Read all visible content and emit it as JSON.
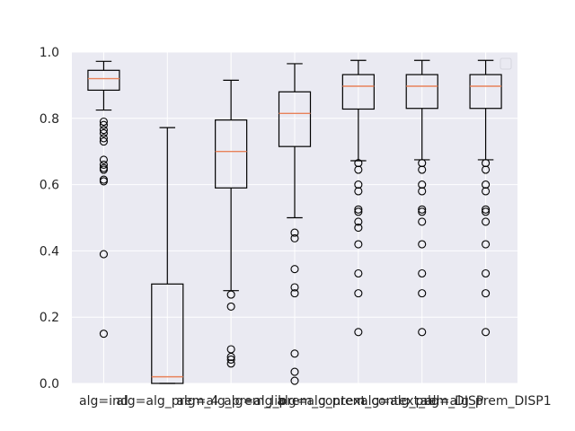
{
  "chart_data": {
    "type": "boxplot",
    "title": "",
    "xlabel": "",
    "ylabel": "",
    "ylim": [
      0.0,
      1.0
    ],
    "yticks": [
      "0.0",
      "0.2",
      "0.4",
      "0.6",
      "0.8",
      "1.0"
    ],
    "yticks_values": [
      0.0,
      0.2,
      0.4,
      0.6,
      0.8,
      1.0
    ],
    "grid": true,
    "legend": {
      "placement": "top-right",
      "entries": []
    },
    "colors": {
      "background": "#EAEAF2",
      "grid": "#FFFFFF",
      "box_edge": "#000000",
      "median": "#E8825A",
      "flier_edge": "#000000"
    },
    "categories": [
      "alg=ind",
      "alg=alg_prem_4",
      "alg=alg_prem_lib",
      "alg=alg_prem_context",
      "alg=alg_prem_context_all",
      "alg=alg_prem_DISP",
      "alg=alg_prem_DISP1"
    ],
    "boxes": [
      {
        "q1": 0.885,
        "median": 0.92,
        "q3": 0.945,
        "whisker_low": 0.825,
        "whisker_high": 0.972,
        "fliers": [
          0.79,
          0.78,
          0.765,
          0.755,
          0.74,
          0.73,
          0.675,
          0.66,
          0.65,
          0.645,
          0.615,
          0.61,
          0.39,
          0.15
        ]
      },
      {
        "q1": 0.0,
        "median": 0.02,
        "q3": 0.3,
        "whisker_low": 0.0,
        "whisker_high": 0.772,
        "fliers": []
      },
      {
        "q1": 0.59,
        "median": 0.7,
        "q3": 0.795,
        "whisker_low": 0.28,
        "whisker_high": 0.915,
        "fliers": [
          0.268,
          0.232,
          0.103,
          0.08,
          0.072,
          0.06
        ]
      },
      {
        "q1": 0.715,
        "median": 0.815,
        "q3": 0.88,
        "whisker_low": 0.5,
        "whisker_high": 0.965,
        "fliers": [
          0.455,
          0.438,
          0.345,
          0.29,
          0.272,
          0.09,
          0.035,
          0.008
        ]
      },
      {
        "q1": 0.828,
        "median": 0.897,
        "q3": 0.932,
        "whisker_low": 0.672,
        "whisker_high": 0.975,
        "fliers": [
          0.665,
          0.645,
          0.6,
          0.58,
          0.525,
          0.518,
          0.488,
          0.47,
          0.42,
          0.332,
          0.272,
          0.155
        ]
      },
      {
        "q1": 0.83,
        "median": 0.897,
        "q3": 0.932,
        "whisker_low": 0.675,
        "whisker_high": 0.975,
        "fliers": [
          0.665,
          0.645,
          0.6,
          0.58,
          0.525,
          0.518,
          0.488,
          0.42,
          0.332,
          0.272,
          0.155
        ]
      },
      {
        "q1": 0.83,
        "median": 0.897,
        "q3": 0.932,
        "whisker_low": 0.675,
        "whisker_high": 0.975,
        "fliers": [
          0.665,
          0.645,
          0.6,
          0.58,
          0.525,
          0.518,
          0.488,
          0.42,
          0.332,
          0.272,
          0.155
        ]
      }
    ]
  }
}
